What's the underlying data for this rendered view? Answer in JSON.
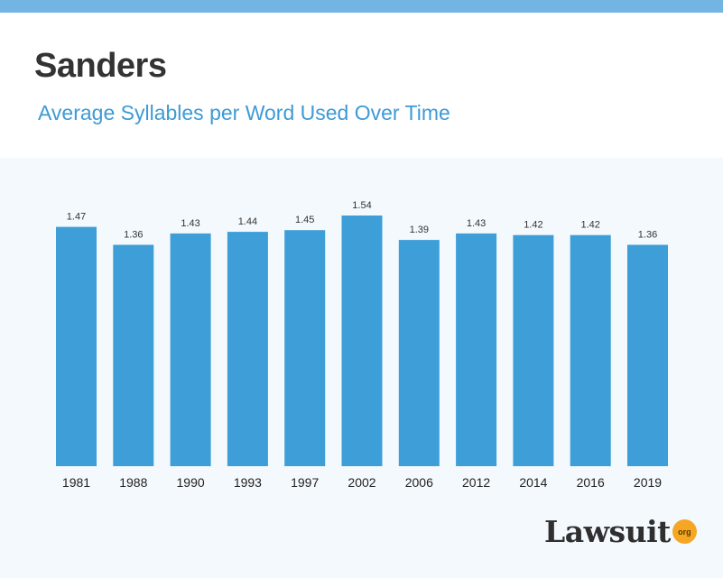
{
  "header": {
    "title": "Sanders",
    "subtitle": "Average Syllables per Word Used Over Time"
  },
  "logo": {
    "text": "Lawsuit",
    "badge": "org"
  },
  "colors": {
    "bar": "#3d9ed8",
    "top_bar": "#72b4e2",
    "subtitle": "#3d9ad6",
    "logo_badge": "#f5a623"
  },
  "chart_data": {
    "type": "bar",
    "title": "Average Syllables per Word Used Over Time",
    "categories": [
      "1981",
      "1988",
      "1990",
      "1993",
      "1997",
      "2002",
      "2006",
      "2012",
      "2014",
      "2016",
      "2019"
    ],
    "values": [
      1.47,
      1.36,
      1.43,
      1.44,
      1.45,
      1.54,
      1.39,
      1.43,
      1.42,
      1.42,
      1.36
    ],
    "value_labels": [
      "1.47",
      "1.36",
      "1.43",
      "1.44",
      "1.45",
      "1.54",
      "1.39",
      "1.43",
      "1.42",
      "1.42",
      "1.36"
    ],
    "xlabel": "",
    "ylabel": "",
    "ylim": [
      0,
      1.54
    ],
    "grid": false,
    "legend": "none"
  }
}
